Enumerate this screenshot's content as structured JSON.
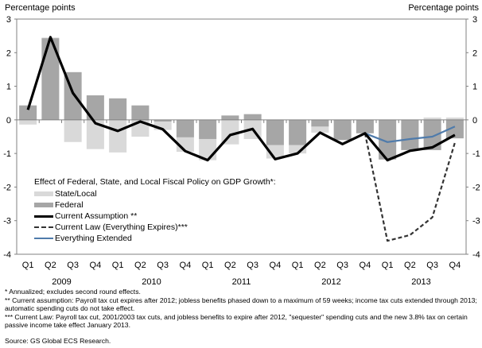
{
  "chart_data": {
    "type": "bar",
    "title": "Effect of Federal, State, and Local Fiscal Policy on GDP Growth*:",
    "ylabel_left": "Percentage points",
    "ylabel_right": "Percentage points",
    "ylim": [
      -4,
      3
    ],
    "yticks": [
      3,
      2,
      1,
      0,
      -1,
      -2,
      -3,
      -4
    ],
    "categories": [
      "Q1",
      "Q2",
      "Q3",
      "Q4",
      "Q1",
      "Q2",
      "Q3",
      "Q4",
      "Q1",
      "Q2",
      "Q3",
      "Q4",
      "Q1",
      "Q2",
      "Q3",
      "Q4",
      "Q1",
      "Q2",
      "Q3",
      "Q4"
    ],
    "years": [
      {
        "label": "2009",
        "start": 0,
        "end": 3
      },
      {
        "label": "2010",
        "start": 4,
        "end": 7
      },
      {
        "label": "2011",
        "start": 8,
        "end": 11
      },
      {
        "label": "2012",
        "start": 12,
        "end": 15
      },
      {
        "label": "2013",
        "start": 16,
        "end": 19
      }
    ],
    "bar_series": [
      {
        "name": "State/Local",
        "color": "#d9d9d9",
        "values": [
          -0.14,
          0.02,
          -0.66,
          -0.87,
          -0.97,
          -0.5,
          -0.25,
          -0.43,
          -0.63,
          -0.73,
          -0.57,
          -0.4,
          -0.25,
          -0.18,
          0.0,
          0.0,
          0.0,
          0.0,
          0.07,
          0.07
        ]
      },
      {
        "name": "Federal",
        "color": "#a6a6a6",
        "values": [
          0.43,
          2.43,
          1.42,
          0.73,
          0.64,
          0.43,
          -0.05,
          -0.52,
          -0.57,
          0.13,
          0.17,
          -0.75,
          -0.75,
          -0.2,
          -0.6,
          -0.4,
          -1.18,
          -0.9,
          -0.9,
          -0.55
        ]
      }
    ],
    "line_series": [
      {
        "name": "Current Assumption **",
        "color": "#000000",
        "style": "solid",
        "values": [
          0.3,
          2.46,
          0.8,
          -0.1,
          -0.33,
          -0.05,
          -0.28,
          -0.93,
          -1.2,
          -0.45,
          -0.27,
          -1.17,
          -1.0,
          -0.38,
          -0.72,
          -0.4,
          -1.2,
          -0.92,
          -0.82,
          -0.45
        ]
      },
      {
        "name": "Current Law (Everything Expires)***",
        "color": "#333333",
        "style": "dashed",
        "values": [
          null,
          null,
          null,
          null,
          null,
          null,
          null,
          null,
          null,
          null,
          null,
          null,
          null,
          null,
          null,
          -0.4,
          -3.6,
          -3.43,
          -2.9,
          -0.68
        ]
      },
      {
        "name": "Everything Extended",
        "color": "#4f7bab",
        "style": "solid",
        "values": [
          null,
          null,
          null,
          null,
          null,
          null,
          null,
          null,
          null,
          null,
          null,
          null,
          null,
          null,
          null,
          -0.4,
          -0.66,
          -0.57,
          -0.5,
          -0.2
        ]
      }
    ],
    "legend": [
      {
        "label": "State/Local",
        "kind": "bar",
        "color": "#d9d9d9"
      },
      {
        "label": "Federal",
        "kind": "bar",
        "color": "#a6a6a6"
      },
      {
        "label": "Current Assumption **",
        "kind": "line",
        "color": "#000000",
        "style": "solid"
      },
      {
        "label": "Current Law (Everything Expires)***",
        "kind": "line",
        "color": "#333333",
        "style": "dashed"
      },
      {
        "label": "Everything Extended",
        "kind": "line",
        "color": "#4f7bab",
        "style": "solid"
      }
    ],
    "legend_placement": "lower-left",
    "grid": false
  },
  "notes": [
    "* Annualized; excludes second round effects.",
    "** Current assumption: Payroll tax cut expires after 2012; jobless benefits phased down to a maximum of 59 weeks; income tax cuts extended through 2013; automatic spending cuts do not take effect.",
    "*** Current Law: Payroll tax cut, 2001/2003 tax cuts, and jobless benefits to expire after 2012, \"sequester\" spending cuts and the new 3.8% tax on certain passive income take effect January 2013."
  ],
  "source": "Source: GS Global ECS Research."
}
